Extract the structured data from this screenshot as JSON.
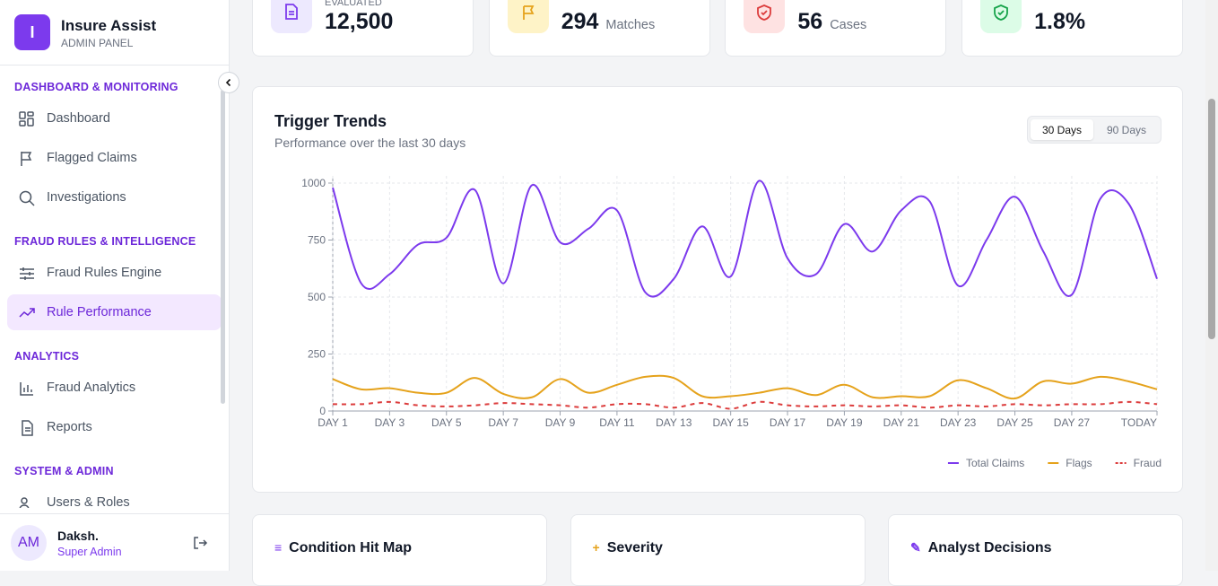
{
  "sidebar": {
    "brand": "Insure Assist",
    "brand_initial": "I",
    "subtitle": "ADMIN PANEL",
    "sections": [
      {
        "title": "DASHBOARD & MONITORING",
        "items": [
          "Dashboard",
          "Flagged Claims",
          "Investigations"
        ]
      },
      {
        "title": "FRAUD RULES & INTELLIGENCE",
        "items": [
          "Fraud Rules Engine",
          "Rule Performance"
        ]
      },
      {
        "title": "ANALYTICS",
        "items": [
          "Fraud Analytics",
          "Reports"
        ]
      },
      {
        "title": "SYSTEM & ADMIN",
        "items": [
          "Users & Roles"
        ]
      }
    ],
    "user": {
      "initials": "AM",
      "name": "Daksh.",
      "role": "Super Admin"
    }
  },
  "stats": [
    {
      "label": "EVALUATED",
      "value": "12,500"
    },
    {
      "value": "294",
      "unit": "Matches"
    },
    {
      "value": "56",
      "unit": "Cases"
    },
    {
      "value": "1.8%"
    }
  ],
  "chart_data": {
    "type": "line",
    "title": "Trigger Trends",
    "subtitle": "Performance over the last 30 days",
    "toggle": [
      "30 Days",
      "90 Days"
    ],
    "categories": [
      "DAY 1",
      null,
      "DAY 3",
      null,
      "DAY 5",
      null,
      "DAY 7",
      null,
      "DAY 9",
      null,
      "DAY 11",
      null,
      "DAY 13",
      null,
      "DAY 15",
      null,
      "DAY 17",
      null,
      "DAY 19",
      null,
      "DAY 21",
      null,
      "DAY 23",
      null,
      "DAY 25",
      null,
      "DAY 27",
      null,
      null,
      "TODAY"
    ],
    "series": [
      {
        "name": "Total Claims",
        "color": "#7c3aed",
        "values": [
          980,
          560,
          600,
          730,
          760,
          970,
          560,
          990,
          740,
          800,
          880,
          520,
          580,
          810,
          590,
          1010,
          670,
          600,
          820,
          700,
          880,
          920,
          550,
          750,
          940,
          700,
          510,
          930,
          910,
          580
        ]
      },
      {
        "name": "Flags",
        "color": "#e5a21b",
        "values": [
          140,
          95,
          100,
          80,
          80,
          145,
          75,
          60,
          140,
          80,
          115,
          150,
          145,
          65,
          65,
          80,
          100,
          70,
          115,
          60,
          65,
          65,
          135,
          100,
          55,
          130,
          120,
          150,
          130,
          95
        ]
      },
      {
        "name": "Fraud",
        "color": "#dc3c3c",
        "dashed": true,
        "values": [
          30,
          30,
          40,
          25,
          20,
          25,
          35,
          30,
          25,
          15,
          30,
          30,
          15,
          35,
          10,
          40,
          25,
          20,
          25,
          20,
          25,
          15,
          25,
          20,
          30,
          25,
          30,
          30,
          40,
          30
        ]
      }
    ],
    "ylim": [
      0,
      1000
    ],
    "yticks": [
      0,
      250,
      500,
      750,
      1000
    ],
    "grid": true,
    "legend": "bottom-right"
  },
  "panels": [
    "Condition Hit Map",
    "Severity",
    "Analyst Decisions"
  ]
}
